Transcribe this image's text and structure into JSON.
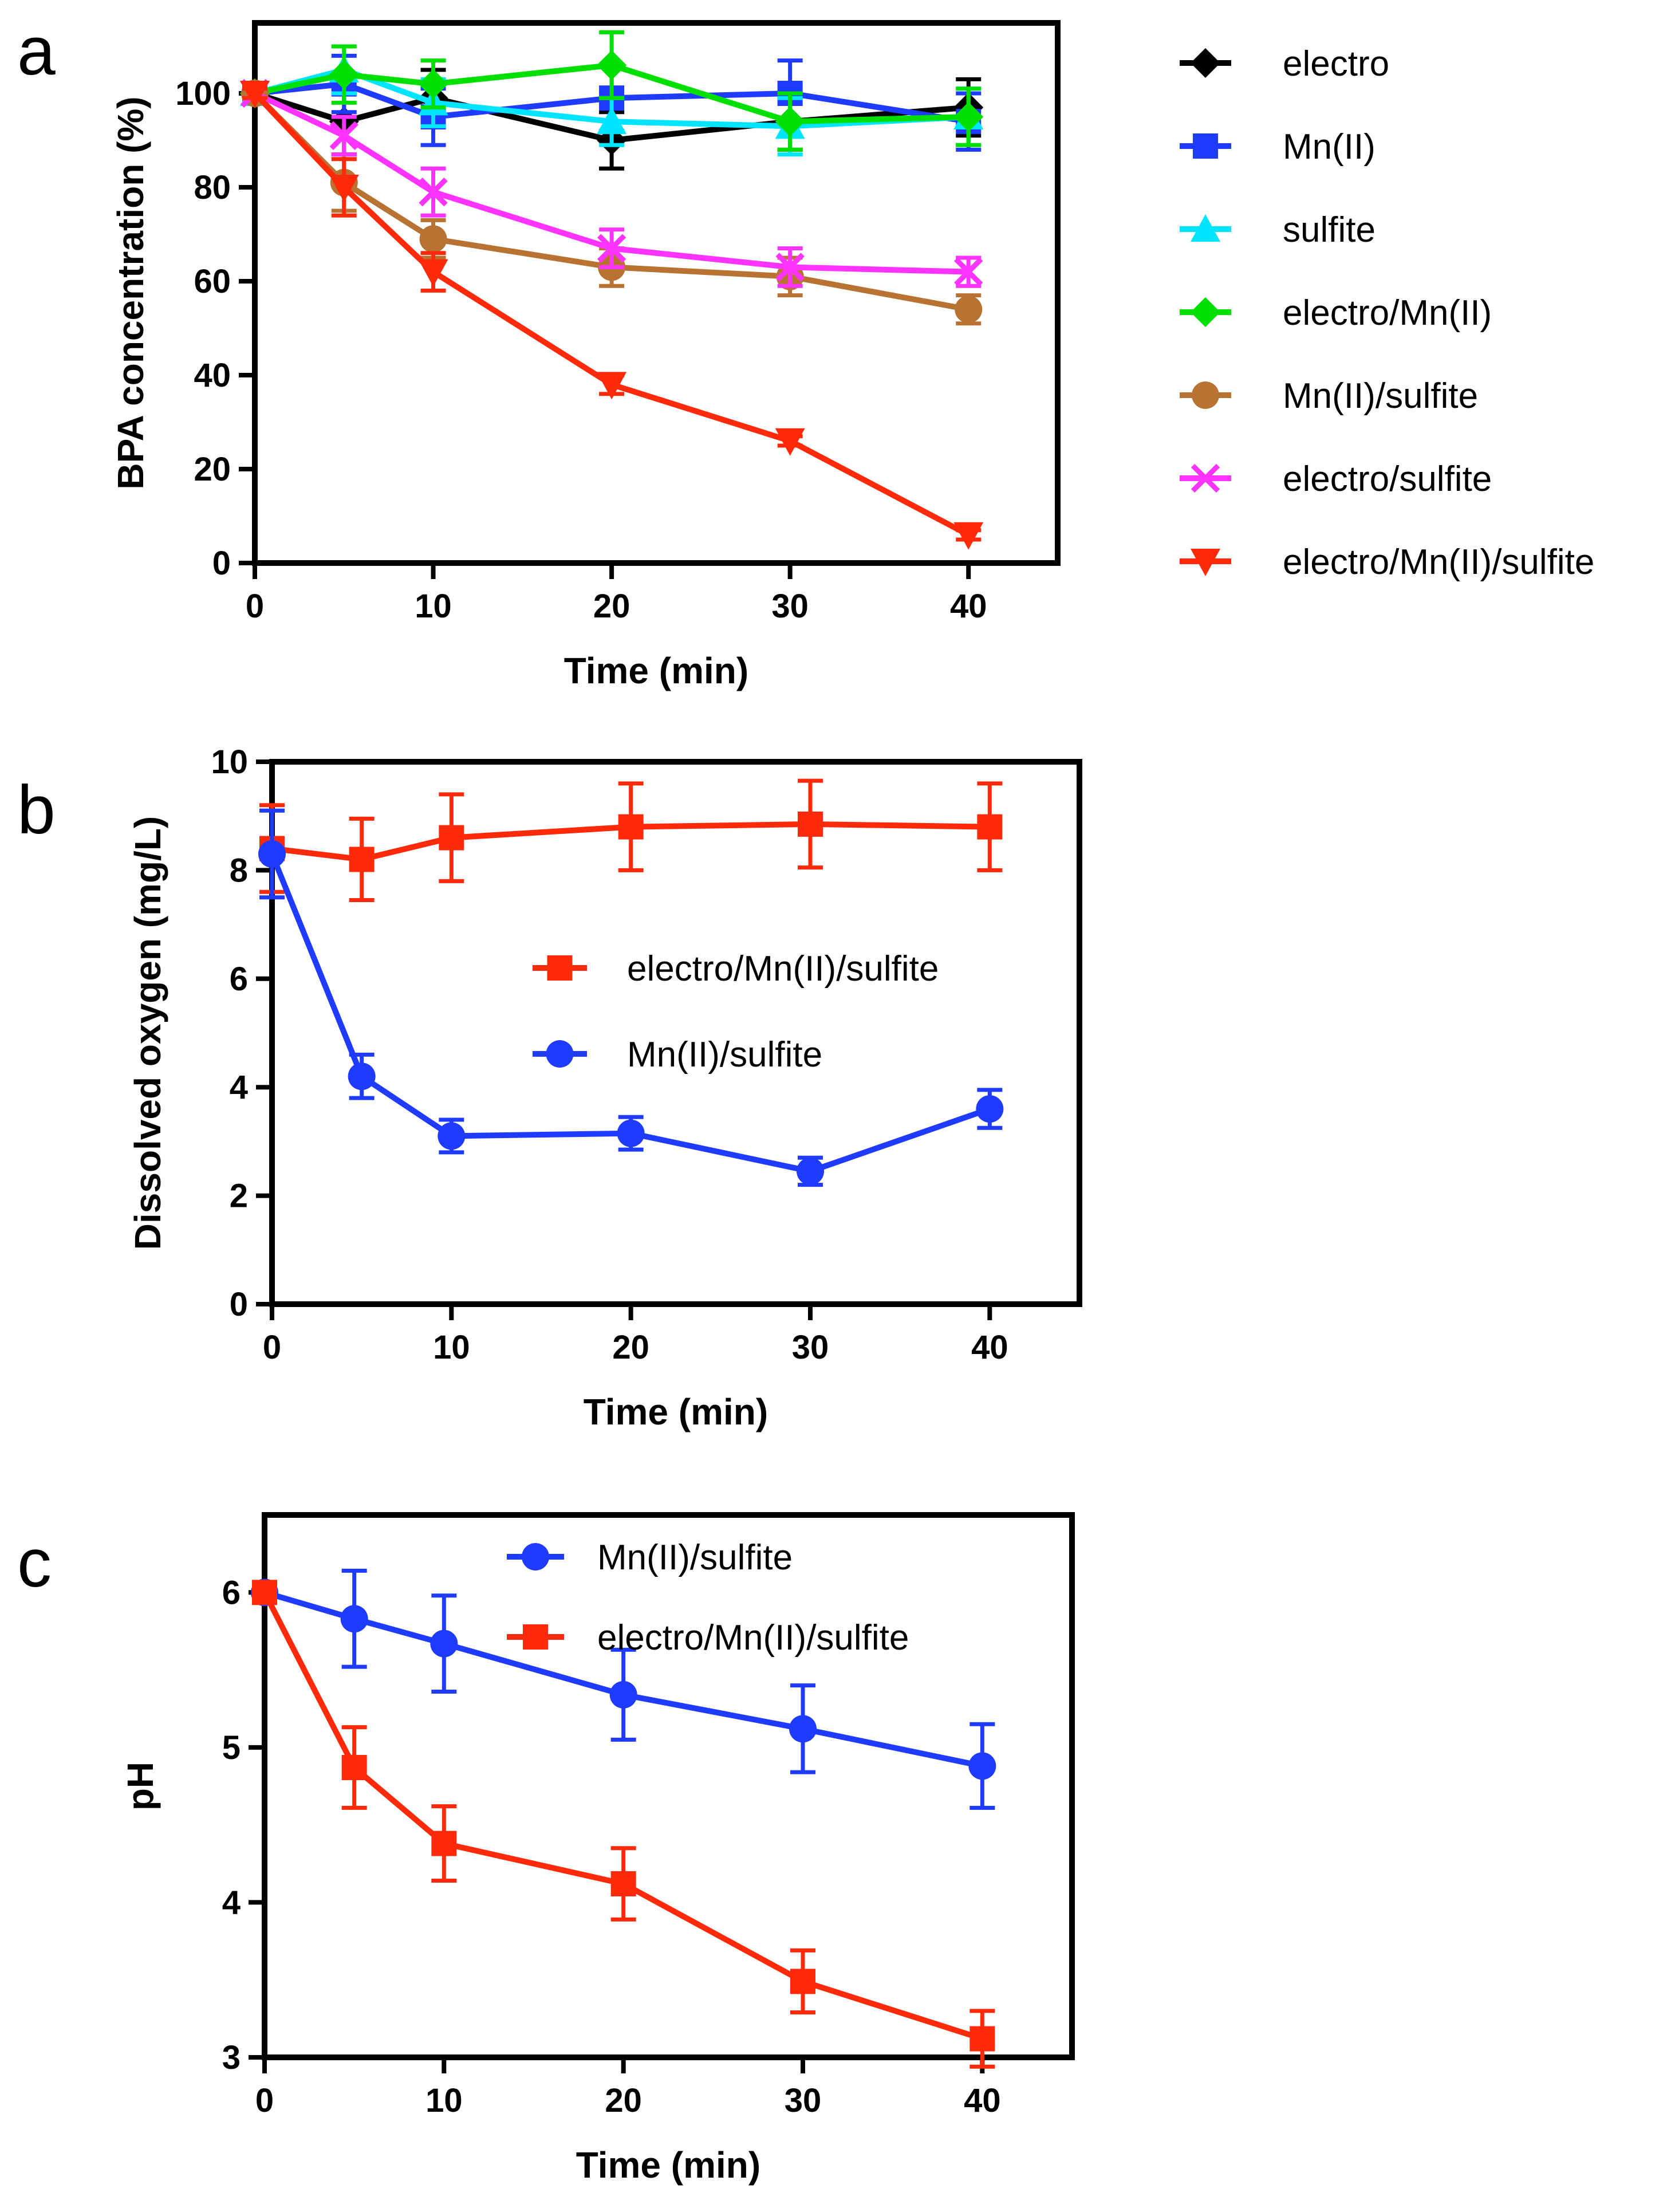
{
  "chart_data": [
    {
      "panel": "a",
      "type": "line",
      "title": "",
      "xlabel": "Time (min)",
      "ylabel": "BPA concentration (%)",
      "xlim": [
        0,
        45
      ],
      "ylim": [
        0,
        115
      ],
      "xticks": [
        0,
        10,
        20,
        30,
        40
      ],
      "yticks": [
        0,
        20,
        40,
        60,
        80,
        100
      ],
      "legend": "outside-right",
      "grid": false,
      "x": [
        0,
        5,
        10,
        20,
        30,
        40
      ],
      "series": [
        {
          "name": "electro",
          "color": "#000000",
          "marker": "diamond",
          "values": [
            100,
            94,
            99,
            90,
            94,
            97
          ],
          "errors": [
            1,
            7,
            6,
            6,
            6,
            6
          ]
        },
        {
          "name": "Mn(II)",
          "color": "#1f3bff",
          "marker": "square",
          "values": [
            100,
            102,
            95,
            99,
            100,
            94
          ],
          "errors": [
            1,
            6,
            6,
            7,
            7,
            6
          ]
        },
        {
          "name": "sulfite",
          "color": "#00e5ff",
          "marker": "triangle-up",
          "values": [
            100,
            105,
            98,
            94,
            93,
            95
          ],
          "errors": [
            1,
            5,
            5,
            5,
            6,
            6
          ]
        },
        {
          "name": "electro/Mn(II)",
          "color": "#00e000",
          "marker": "diamond",
          "values": [
            100,
            104,
            102,
            106,
            94,
            95
          ],
          "errors": [
            1,
            6,
            5,
            7,
            6,
            6
          ]
        },
        {
          "name": "Mn(II)/sulfite",
          "color": "#b87333",
          "marker": "circle",
          "values": [
            100,
            81,
            69,
            63,
            61,
            54
          ],
          "errors": [
            1,
            6,
            4,
            4,
            4,
            3
          ]
        },
        {
          "name": "electro/sulfite",
          "color": "#ff33ff",
          "marker": "x",
          "values": [
            100,
            91,
            79,
            67,
            63,
            62
          ],
          "errors": [
            1,
            4,
            5,
            4,
            4,
            3
          ]
        },
        {
          "name": "electro/Mn(II)/sulfite",
          "color": "#ff2a0a",
          "marker": "triangle-down",
          "values": [
            100,
            80,
            62,
            38,
            26,
            6
          ],
          "errors": [
            1,
            6,
            4,
            2,
            1,
            1
          ]
        }
      ]
    },
    {
      "panel": "b",
      "type": "line",
      "title": "",
      "xlabel": "Time (min)",
      "ylabel": "Dissolved oxygen (mg/L)",
      "xlim": [
        0,
        45
      ],
      "ylim": [
        0,
        10
      ],
      "xticks": [
        0,
        10,
        20,
        30,
        40
      ],
      "yticks": [
        0,
        2,
        4,
        6,
        8,
        10
      ],
      "legend": "center-right",
      "grid": false,
      "x": [
        0,
        5,
        10,
        20,
        30,
        40
      ],
      "series": [
        {
          "name": "electro/Mn(II)/sulfite",
          "color": "#ff2a0a",
          "marker": "square",
          "values": [
            8.4,
            8.2,
            8.6,
            8.8,
            8.85,
            8.8
          ],
          "errors": [
            0.8,
            0.75,
            0.8,
            0.8,
            0.8,
            0.8
          ]
        },
        {
          "name": "Mn(II)/sulfite",
          "color": "#1f3bff",
          "marker": "circle",
          "values": [
            8.3,
            4.2,
            3.1,
            3.15,
            2.45,
            3.6
          ],
          "errors": [
            0.8,
            0.4,
            0.3,
            0.3,
            0.25,
            0.35
          ]
        }
      ]
    },
    {
      "panel": "c",
      "type": "line",
      "title": "",
      "xlabel": "Time (min)",
      "ylabel": "pH",
      "xlim": [
        0,
        45
      ],
      "ylim": [
        3,
        6.5
      ],
      "xticks": [
        0,
        10,
        20,
        30,
        40
      ],
      "yticks": [
        3,
        4,
        5,
        6
      ],
      "legend": "top-center",
      "grid": false,
      "x": [
        0,
        5,
        10,
        20,
        30,
        40
      ],
      "series": [
        {
          "name": "Mn(II)/sulfite",
          "color": "#1f3bff",
          "marker": "circle",
          "values": [
            6.0,
            5.83,
            5.67,
            5.34,
            5.12,
            4.88
          ],
          "errors": [
            0.02,
            0.31,
            0.31,
            0.29,
            0.28,
            0.27
          ]
        },
        {
          "name": "electro/Mn(II)/sulfite",
          "color": "#ff2a0a",
          "marker": "square",
          "values": [
            6.0,
            4.87,
            4.38,
            4.12,
            3.49,
            3.12
          ],
          "errors": [
            0.02,
            0.26,
            0.24,
            0.23,
            0.2,
            0.18
          ]
        }
      ]
    }
  ]
}
